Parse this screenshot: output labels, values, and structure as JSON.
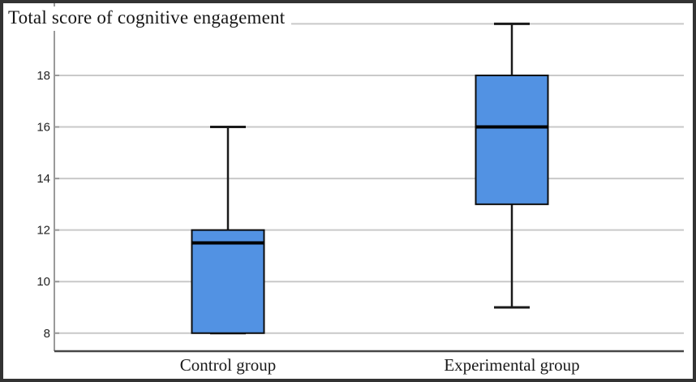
{
  "chart_data": {
    "type": "boxplot",
    "title": "Total score of cognitive engagement",
    "categories": [
      "Control group",
      "Experimental group"
    ],
    "series": [
      {
        "name": "Control group",
        "whisker_low": 8,
        "q1": 8,
        "median": 11.5,
        "q3": 12,
        "whisker_high": 16
      },
      {
        "name": "Experimental group",
        "whisker_low": 9,
        "q1": 13,
        "median": 16,
        "q3": 18,
        "whisker_high": 20
      }
    ],
    "yticks": [
      "8",
      "10",
      "12",
      "14",
      "16",
      "18"
    ],
    "ytick_values": [
      8,
      10,
      12,
      14,
      16,
      18
    ],
    "ygridline_values": [
      8,
      10,
      12,
      14,
      16,
      18,
      20
    ],
    "ylim": [
      7.3,
      20.8
    ],
    "grid": true,
    "legend": "none",
    "xlabel": "",
    "ylabel": "",
    "colors": {
      "box_fill": "#5292e3",
      "box_border": "#0d0d0d",
      "median": "#000000",
      "whisker": "#1a1a1a",
      "gridline": "#c9c9c9",
      "y_axis": "#9a9a9a",
      "x_axis": "#474747",
      "text": "#1f1f1f",
      "frame_border": "#333333",
      "background": "#ffffff"
    }
  }
}
